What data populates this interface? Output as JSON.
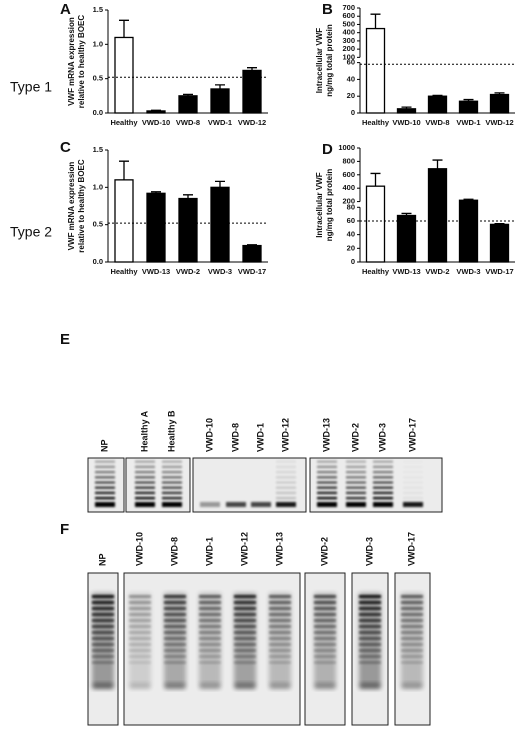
{
  "chart_data": [
    {
      "type": "bar",
      "panel_label": "A",
      "row_label": "Type 1",
      "ylabel": [
        "VWF mRNA expression",
        "relative to healthy BOEC"
      ],
      "categories": [
        "Healthy",
        "VWD-10",
        "VWD-8",
        "VWD-1",
        "VWD-12"
      ],
      "values": [
        1.1,
        0.03,
        0.25,
        0.35,
        0.62
      ],
      "errors": [
        0.25,
        0.01,
        0.02,
        0.06,
        0.04
      ],
      "colors": [
        "#ffffff",
        "#000000",
        "#000000",
        "#000000",
        "#000000"
      ],
      "ylim": [
        0,
        1.5
      ],
      "yticks": [
        {
          "value": 0,
          "label": "0.0"
        },
        0.5,
        {
          "value": 1,
          "label": "1.0"
        },
        1.5
      ],
      "reference_line": 0.52,
      "grid": false
    },
    {
      "type": "bar",
      "panel_label": "B",
      "ylabel": [
        "Intracellular VWF",
        "ng/mg total protein"
      ],
      "categories": [
        "Healthy",
        "VWD-10",
        "VWD-8",
        "VWD-1",
        "VWD-12"
      ],
      "values": [
        450,
        5,
        20,
        14,
        22
      ],
      "errors": [
        175,
        2,
        1,
        2,
        2
      ],
      "colors": [
        "#ffffff",
        "#000000",
        "#000000",
        "#000000",
        "#000000"
      ],
      "ylim": [
        0,
        700
      ],
      "ybreak": [
        60,
        100
      ],
      "yticks": [
        0,
        20,
        40,
        60,
        100,
        200,
        300,
        400,
        500,
        600,
        700
      ],
      "reference_line": 58,
      "grid": false
    },
    {
      "type": "bar",
      "panel_label": "C",
      "row_label": "Type 2",
      "ylabel": [
        "VWF mRNA expression",
        "relative to healthy BOEC"
      ],
      "categories": [
        "Healthy",
        "VWD-13",
        "VWD-2",
        "VWD-3",
        "VWD-17"
      ],
      "values": [
        1.1,
        0.92,
        0.85,
        1.0,
        0.22
      ],
      "errors": [
        0.25,
        0.02,
        0.05,
        0.08,
        0.01
      ],
      "colors": [
        "#ffffff",
        "#000000",
        "#000000",
        "#000000",
        "#000000"
      ],
      "ylim": [
        0,
        1.5
      ],
      "yticks": [
        {
          "value": 0,
          "label": "0.0"
        },
        0.5,
        {
          "value": 1,
          "label": "1.0"
        },
        1.5
      ],
      "reference_line": 0.52,
      "grid": false
    },
    {
      "type": "bar",
      "panel_label": "D",
      "ylabel": [
        "Intracellular VWF",
        "ng/mg total protein"
      ],
      "categories": [
        "Healthy",
        "VWD-13",
        "VWD-2",
        "VWD-3",
        "VWD-17"
      ],
      "values": [
        430,
        68,
        690,
        220,
        55
      ],
      "errors": [
        190,
        3,
        130,
        15,
        1
      ],
      "colors": [
        "#ffffff",
        "#000000",
        "#000000",
        "#000000",
        "#000000"
      ],
      "ylim": [
        0,
        1000
      ],
      "ybreak": [
        80,
        200
      ],
      "yticks": [
        0,
        20,
        40,
        60,
        80,
        200,
        400,
        600,
        800,
        1000
      ],
      "reference_line": 60,
      "grid": false
    }
  ],
  "gels": {
    "E": {
      "panel_label": "E",
      "lanes": [
        "NP",
        "Healthy  A",
        "Healthy  B",
        "VWD-10",
        "VWD-8",
        "VWD-1",
        "VWD-12",
        "VWD-13",
        "VWD-2",
        "VWD-3",
        "VWD-17"
      ]
    },
    "F": {
      "panel_label": "F",
      "lanes": [
        "NP",
        "VWD-10",
        "VWD-8",
        "VWD-1",
        "VWD-12",
        "VWD-13",
        "VWD-2",
        "VWD-3",
        "VWD-17"
      ]
    }
  }
}
